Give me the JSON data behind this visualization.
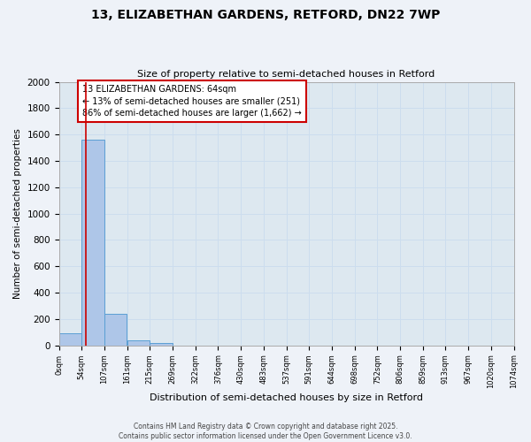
{
  "title": "13, ELIZABETHAN GARDENS, RETFORD, DN22 7WP",
  "subtitle": "Size of property relative to semi-detached houses in Retford",
  "xlabel": "Distribution of semi-detached houses by size in Retford",
  "ylabel": "Number of semi-detached properties",
  "bar_values": [
    90,
    1560,
    240,
    40,
    20,
    0,
    0,
    0,
    0,
    0,
    0,
    0,
    0,
    0,
    0,
    0,
    0,
    0,
    0,
    0
  ],
  "bin_edges": [
    0,
    53.7,
    107.4,
    161.1,
    214.8,
    268.5,
    322.2,
    375.9,
    429.6,
    483.3,
    537.0,
    590.7,
    644.4,
    698.1,
    751.8,
    805.5,
    859.2,
    912.9,
    966.6,
    1020.3,
    1074.0
  ],
  "xtick_labels": [
    "0sqm",
    "54sqm",
    "107sqm",
    "161sqm",
    "215sqm",
    "269sqm",
    "322sqm",
    "376sqm",
    "430sqm",
    "483sqm",
    "537sqm",
    "591sqm",
    "644sqm",
    "698sqm",
    "752sqm",
    "806sqm",
    "859sqm",
    "913sqm",
    "967sqm",
    "1020sqm",
    "1074sqm"
  ],
  "bar_color": "#aec6e8",
  "bar_edge_color": "#5a9fd4",
  "property_size": 64,
  "property_line_color": "#cc0000",
  "ylim": [
    0,
    2000
  ],
  "yticks": [
    0,
    200,
    400,
    600,
    800,
    1000,
    1200,
    1400,
    1600,
    1800,
    2000
  ],
  "annotation_text": "13 ELIZABETHAN GARDENS: 64sqm\n← 13% of semi-detached houses are smaller (251)\n86% of semi-detached houses are larger (1,662) →",
  "annotation_box_color": "#ffffff",
  "annotation_box_edge": "#cc0000",
  "grid_color": "#ccddee",
  "bg_color": "#dde8f0",
  "fig_bg_color": "#eef2f8",
  "footer_line1": "Contains HM Land Registry data © Crown copyright and database right 2025.",
  "footer_line2": "Contains public sector information licensed under the Open Government Licence v3.0."
}
